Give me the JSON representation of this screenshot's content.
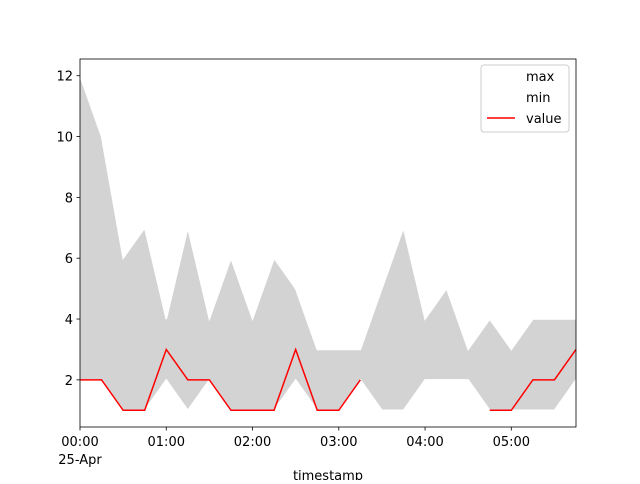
{
  "chart_data": {
    "type": "line",
    "x_label": "timestamp",
    "x": [
      "25-Apr 00:00",
      "25-Apr 00:15",
      "25-Apr 00:30",
      "25-Apr 00:45",
      "25-Apr 01:00",
      "25-Apr 01:15",
      "25-Apr 01:30",
      "25-Apr 01:45",
      "25-Apr 02:00",
      "25-Apr 02:15",
      "25-Apr 02:30",
      "25-Apr 02:45",
      "25-Apr 03:00",
      "25-Apr 03:15",
      "25-Apr 03:30",
      "25-Apr 03:45",
      "25-Apr 04:00",
      "25-Apr 04:15",
      "25-Apr 04:30",
      "25-Apr 04:45",
      "25-Apr 05:00",
      "25-Apr 05:15",
      "25-Apr 05:30",
      "25-Apr 05:45"
    ],
    "series": [
      {
        "name": "max",
        "color": "#ffffff",
        "values": [
          12,
          10,
          6,
          7,
          4,
          7,
          4,
          6,
          4,
          6,
          5,
          3,
          3,
          3,
          5,
          7,
          4,
          5,
          3,
          4,
          3,
          4,
          4,
          4
        ]
      },
      {
        "name": "min",
        "color": "#ffffff",
        "values": [
          2,
          2,
          1,
          1,
          2,
          1,
          2,
          1,
          1,
          1,
          2,
          1,
          1,
          2,
          1,
          1,
          2,
          2,
          2,
          1,
          1,
          1,
          1,
          2
        ]
      },
      {
        "name": "value",
        "color": "#ff0000",
        "values": [
          2,
          2,
          1,
          1,
          3,
          2,
          2,
          1,
          1,
          1,
          3,
          1,
          1,
          2,
          null,
          null,
          null,
          null,
          null,
          1,
          1,
          2,
          2,
          3
        ]
      }
    ],
    "fill_color": "#d3d3d3",
    "xlim": [
      "25-Apr 00:00",
      "25-Apr 05:45"
    ],
    "xticks": [
      {
        "value": "25-Apr 00:00",
        "label": "00:00",
        "date": "25-Apr"
      },
      {
        "value": "25-Apr 01:00",
        "label": "01:00"
      },
      {
        "value": "25-Apr 02:00",
        "label": "02:00"
      },
      {
        "value": "25-Apr 03:00",
        "label": "03:00"
      },
      {
        "value": "25-Apr 04:00",
        "label": "04:00"
      },
      {
        "value": "25-Apr 05:00",
        "label": "05:00"
      }
    ],
    "ylim": [
      0.45,
      12.55
    ],
    "yticks": [
      2,
      4,
      6,
      8,
      10,
      12
    ],
    "legend": "upper right"
  }
}
